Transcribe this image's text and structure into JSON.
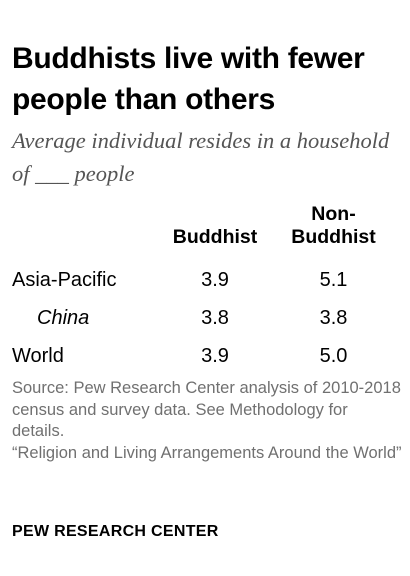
{
  "title": "Buddhists live with fewer people than others",
  "subtitle": "Average individual resides in a household of ___ people",
  "chart_data": {
    "type": "table",
    "columns": [
      "Buddhist",
      "Non-Buddhist"
    ],
    "rows": [
      {
        "label": "Asia-Pacific",
        "indent": false,
        "values": [
          "3.9",
          "5.1"
        ]
      },
      {
        "label": "China",
        "indent": true,
        "values": [
          "3.8",
          "3.8"
        ]
      },
      {
        "label": "World",
        "indent": false,
        "values": [
          "3.9",
          "5.0"
        ]
      }
    ]
  },
  "source": {
    "line1": "Source: Pew Research Center analysis of 2010-2018 census and survey data. See Methodology for details.",
    "line2": "“Religion and Living Arrangements Around the World”"
  },
  "brand": "PEW RESEARCH CENTER"
}
